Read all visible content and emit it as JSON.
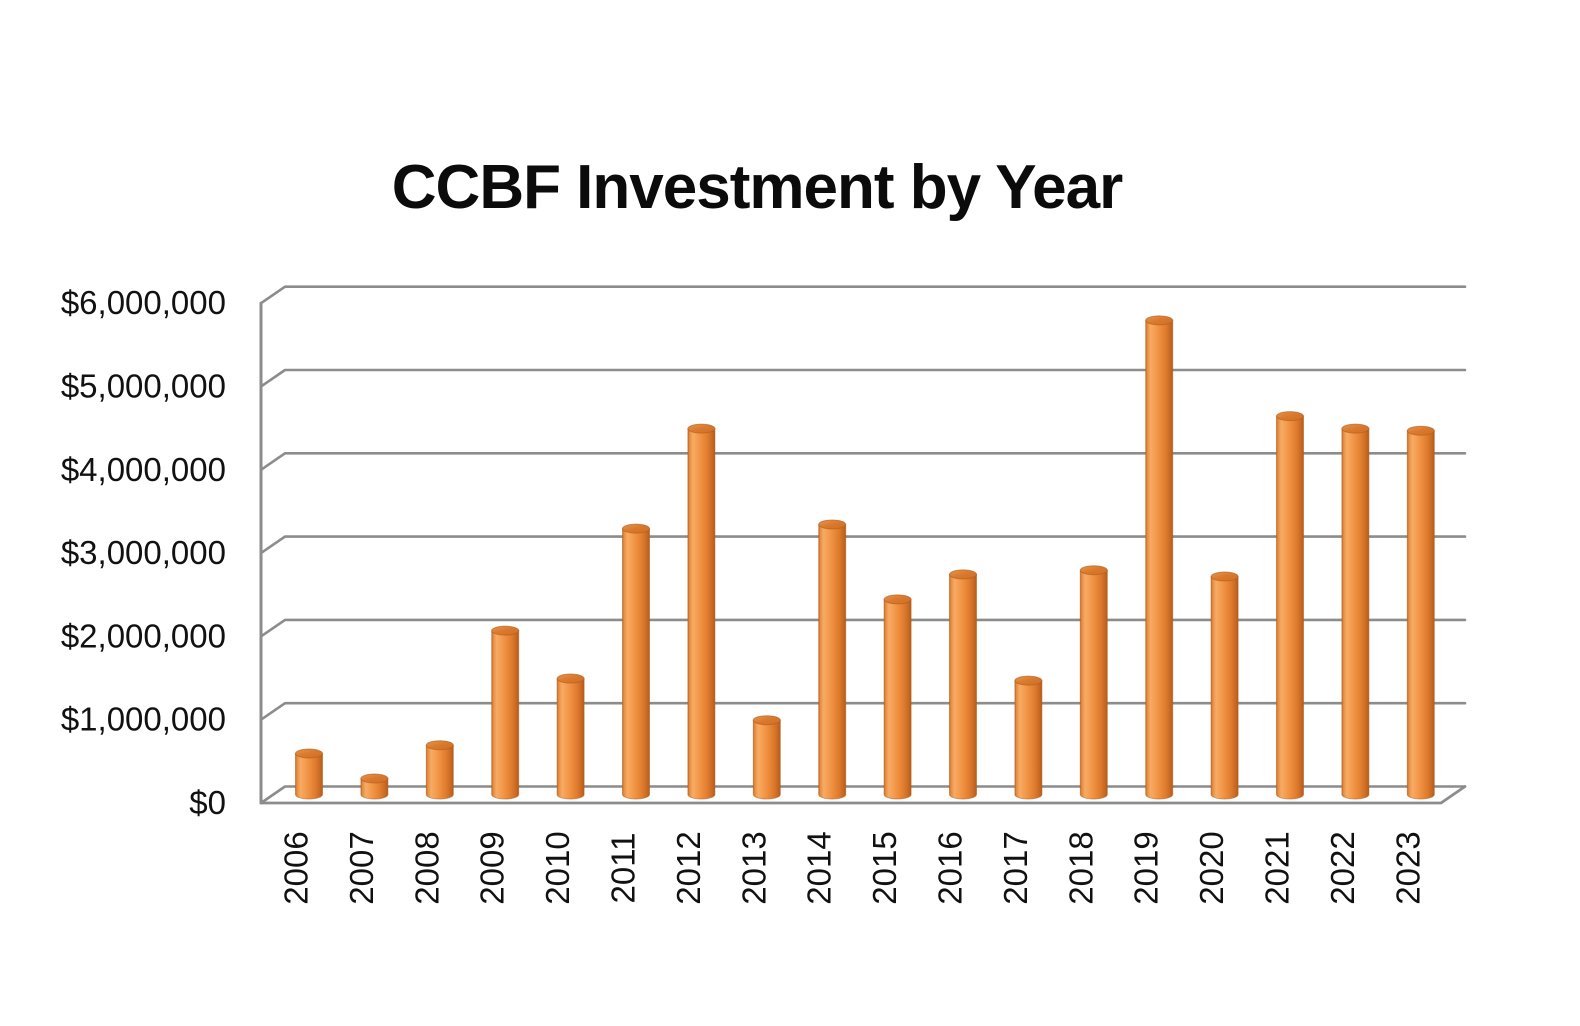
{
  "title": "CCBF Investment by Year",
  "chart_data": {
    "type": "bar",
    "bar_style": "3d-cylinder",
    "title": "CCBF Investment by Year",
    "series_name": "CCBF Investment",
    "categories": [
      "2006",
      "2007",
      "2008",
      "2009",
      "2010",
      "2011",
      "2012",
      "2013",
      "2014",
      "2015",
      "2016",
      "2017",
      "2018",
      "2019",
      "2020",
      "2021",
      "2022",
      "2023"
    ],
    "values": [
      600000,
      300000,
      700000,
      2075000,
      1500000,
      3300000,
      4500000,
      1000000,
      3350000,
      2450000,
      2750000,
      1475000,
      2800000,
      5800000,
      2725000,
      4650000,
      4500000,
      4475000
    ],
    "xlabel": "",
    "ylabel": "",
    "ylim": [
      0,
      6000000
    ],
    "y_tick_interval": 1000000,
    "y_tick_labels": [
      "$0",
      "$1,000,000",
      "$2,000,000",
      "$3,000,000",
      "$4,000,000",
      "$5,000,000",
      "$6,000,000"
    ],
    "grid": true,
    "legend": false,
    "x_labels_rotated_degrees": 90,
    "colors": {
      "bar_fill": "#EE9148",
      "bar_highlight": "#F7AB64",
      "bar_shadow": "#B55C1C",
      "bar_top_face": "#D9792D",
      "bar_outline": "#AF5B1B",
      "gridline": "#8C8C8C",
      "title_color": "#0B0B0B",
      "background": "#FFFFFF"
    }
  }
}
